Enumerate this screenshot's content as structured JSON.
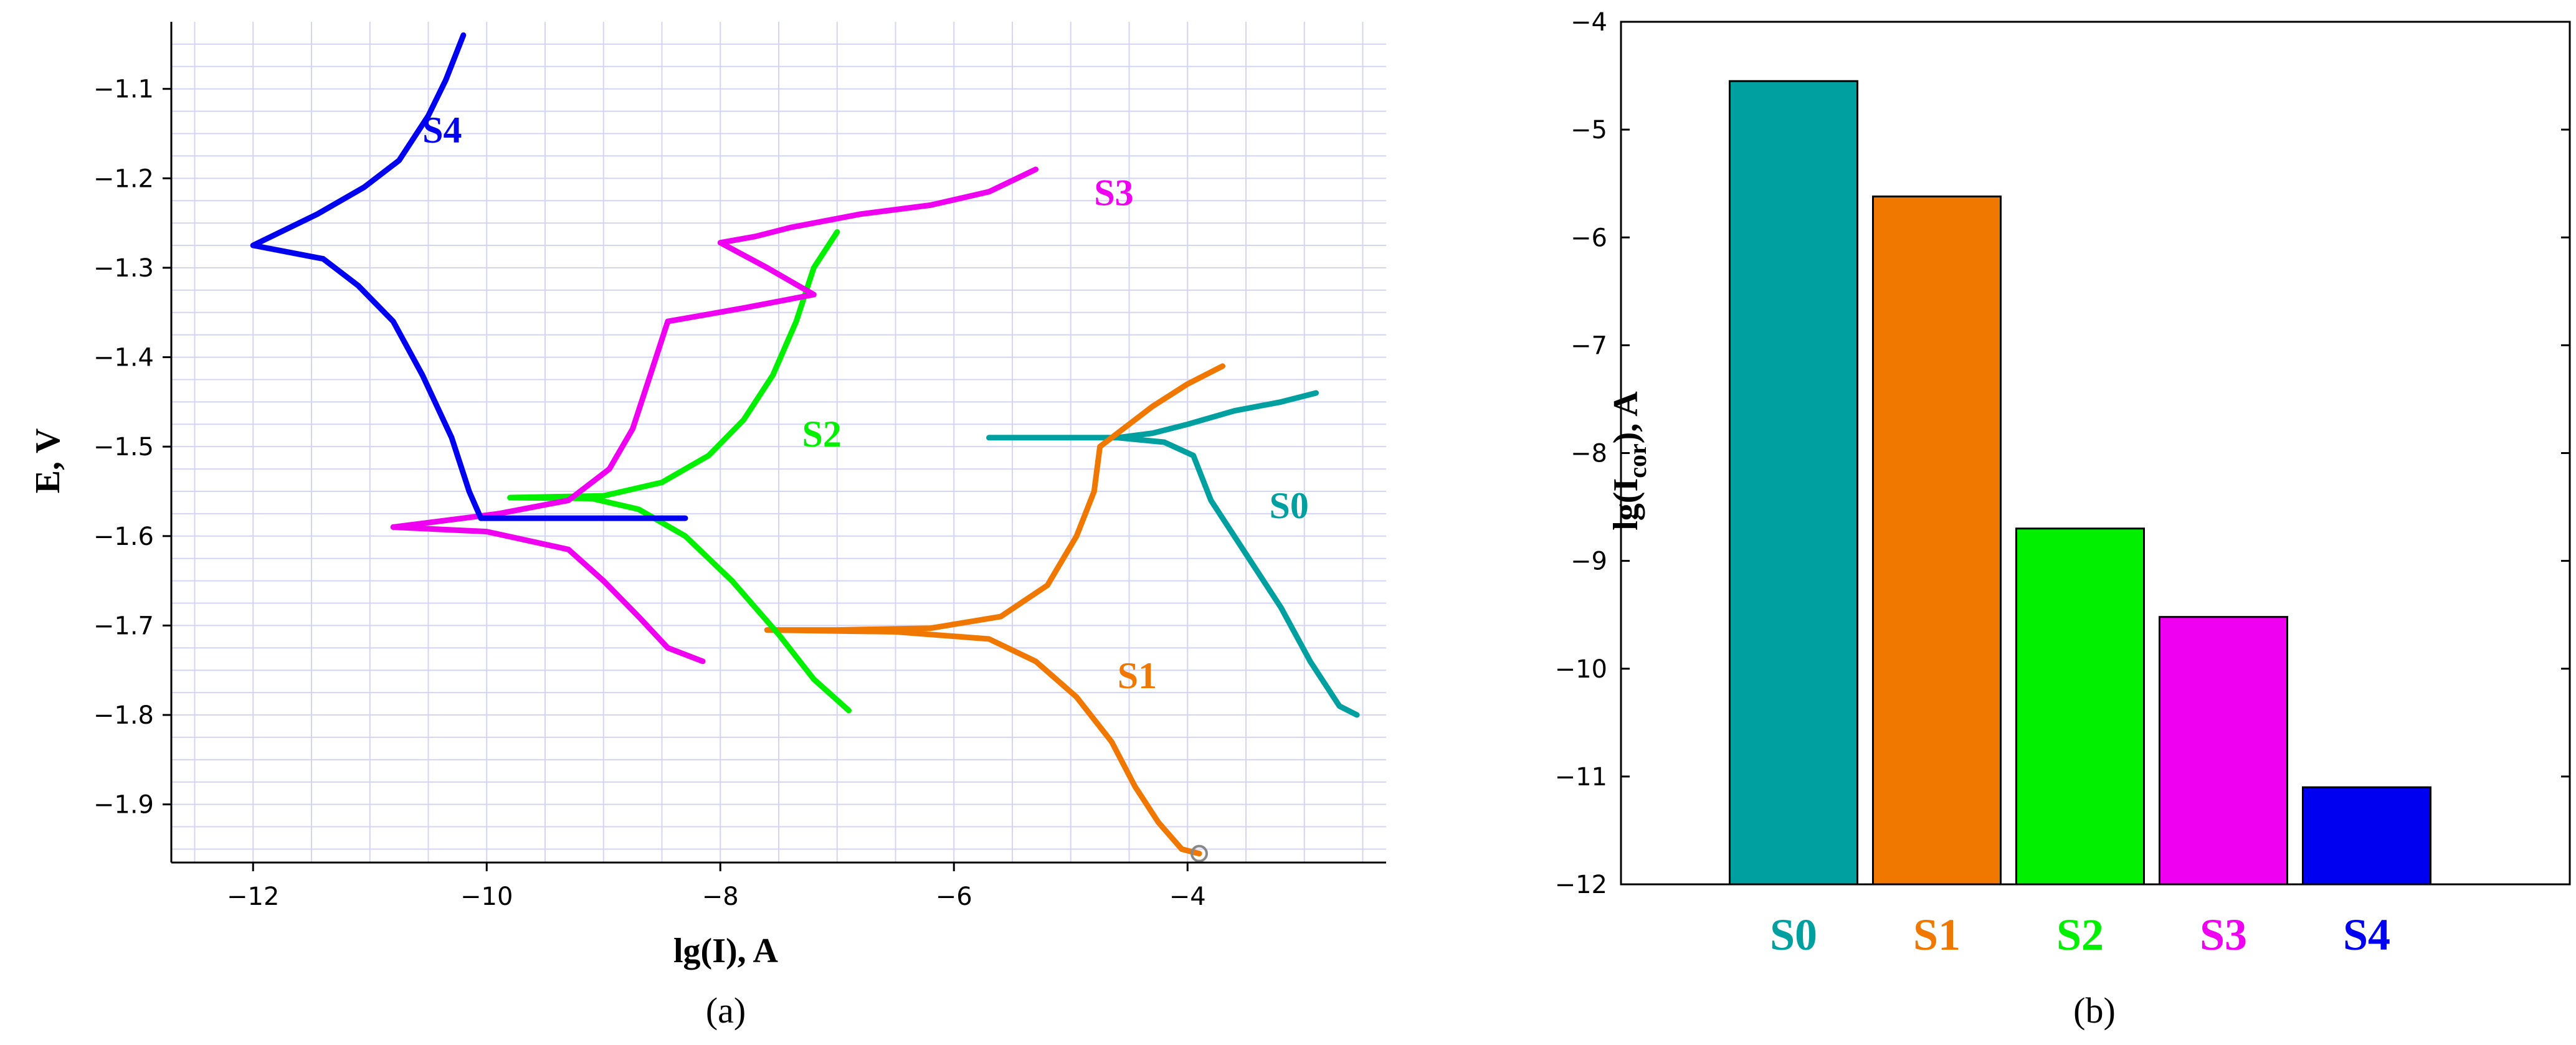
{
  "figure_labels": {
    "a": "(a)",
    "b": "(b)"
  },
  "chart_data": [
    {
      "type": "line",
      "title": "",
      "xlabel": "lg(I), A",
      "ylabel": "E, V",
      "xlim": [
        -12.7,
        -2.3
      ],
      "ylim": [
        -1.965,
        -1.025
      ],
      "xticks": [
        -12,
        -10,
        -8,
        -6,
        -4
      ],
      "yticks": [
        -1.1,
        -1.2,
        -1.3,
        -1.4,
        -1.5,
        -1.6,
        -1.7,
        -1.8,
        -1.9
      ],
      "xtick_labels": [
        "−12",
        "−10",
        "−8",
        "−6",
        "−4"
      ],
      "ytick_labels": [
        "−1.1",
        "−1.2",
        "−1.3",
        "−1.4",
        "−1.5",
        "−1.6",
        "−1.7",
        "−1.8",
        "−1.9"
      ],
      "grid": true,
      "series": [
        {
          "name": "S0",
          "color": "#00A0A0",
          "label_at": [
            -3.3,
            -1.58
          ],
          "points": [
            [
              -5.7,
              -1.49
            ],
            [
              -5.0,
              -1.49
            ],
            [
              -4.6,
              -1.49
            ],
            [
              -4.3,
              -1.485
            ],
            [
              -4.0,
              -1.475
            ],
            [
              -3.6,
              -1.46
            ],
            [
              -3.2,
              -1.45
            ],
            [
              -2.9,
              -1.44
            ]
          ],
          "points2": [
            [
              -4.6,
              -1.49
            ],
            [
              -4.2,
              -1.495
            ],
            [
              -3.95,
              -1.51
            ],
            [
              -3.8,
              -1.56
            ],
            [
              -3.5,
              -1.62
            ],
            [
              -3.2,
              -1.68
            ],
            [
              -2.95,
              -1.74
            ],
            [
              -2.7,
              -1.79
            ],
            [
              -2.55,
              -1.8
            ]
          ]
        },
        {
          "name": "S1",
          "color": "#F07800",
          "label_at": [
            -4.6,
            -1.77
          ],
          "points": [
            [
              -3.7,
              -1.41
            ],
            [
              -4.0,
              -1.43
            ],
            [
              -4.3,
              -1.455
            ],
            [
              -4.65,
              -1.49
            ],
            [
              -4.75,
              -1.5
            ],
            [
              -4.8,
              -1.55
            ],
            [
              -4.95,
              -1.6
            ],
            [
              -5.2,
              -1.655
            ],
            [
              -5.6,
              -1.69
            ],
            [
              -6.2,
              -1.703
            ],
            [
              -7.0,
              -1.705
            ],
            [
              -7.6,
              -1.705
            ]
          ],
          "points2": [
            [
              -7.6,
              -1.705
            ],
            [
              -6.5,
              -1.707
            ],
            [
              -5.7,
              -1.715
            ],
            [
              -5.3,
              -1.74
            ],
            [
              -4.95,
              -1.78
            ],
            [
              -4.65,
              -1.83
            ],
            [
              -4.45,
              -1.88
            ],
            [
              -4.25,
              -1.92
            ],
            [
              -4.05,
              -1.95
            ],
            [
              -3.9,
              -1.955
            ]
          ]
        },
        {
          "name": "S2",
          "color": "#00F000",
          "label_at": [
            -7.3,
            -1.5
          ],
          "points": [
            [
              -7.0,
              -1.26
            ],
            [
              -7.2,
              -1.3
            ],
            [
              -7.35,
              -1.36
            ],
            [
              -7.55,
              -1.42
            ],
            [
              -7.8,
              -1.47
            ],
            [
              -8.1,
              -1.51
            ],
            [
              -8.5,
              -1.54
            ],
            [
              -9.0,
              -1.555
            ],
            [
              -9.8,
              -1.557
            ]
          ],
          "points2": [
            [
              -9.8,
              -1.557
            ],
            [
              -9.1,
              -1.558
            ],
            [
              -8.7,
              -1.57
            ],
            [
              -8.3,
              -1.6
            ],
            [
              -7.9,
              -1.65
            ],
            [
              -7.5,
              -1.71
            ],
            [
              -7.2,
              -1.76
            ],
            [
              -6.9,
              -1.795
            ]
          ]
        },
        {
          "name": "S3",
          "color": "#F000F0",
          "label_at": [
            -4.8,
            -1.23
          ],
          "points": [
            [
              -5.3,
              -1.19
            ],
            [
              -5.7,
              -1.215
            ],
            [
              -6.2,
              -1.23
            ],
            [
              -6.8,
              -1.24
            ],
            [
              -7.4,
              -1.255
            ],
            [
              -7.7,
              -1.265
            ],
            [
              -8.0,
              -1.272
            ],
            [
              -7.6,
              -1.3
            ],
            [
              -7.2,
              -1.33
            ],
            [
              -7.8,
              -1.345
            ],
            [
              -8.45,
              -1.36
            ],
            [
              -8.6,
              -1.42
            ],
            [
              -8.75,
              -1.48
            ],
            [
              -8.95,
              -1.525
            ],
            [
              -9.3,
              -1.56
            ],
            [
              -9.9,
              -1.575
            ],
            [
              -10.8,
              -1.59
            ]
          ],
          "points2": [
            [
              -10.8,
              -1.59
            ],
            [
              -10.0,
              -1.595
            ],
            [
              -9.3,
              -1.615
            ],
            [
              -9.0,
              -1.65
            ],
            [
              -8.7,
              -1.69
            ],
            [
              -8.45,
              -1.725
            ],
            [
              -8.15,
              -1.74
            ]
          ]
        },
        {
          "name": "S4",
          "color": "#0000F0",
          "label_at": [
            -10.55,
            -1.16
          ],
          "points": [
            [
              -10.2,
              -1.04
            ],
            [
              -10.35,
              -1.09
            ],
            [
              -10.5,
              -1.13
            ],
            [
              -10.75,
              -1.18
            ],
            [
              -11.05,
              -1.21
            ],
            [
              -11.45,
              -1.24
            ],
            [
              -12.0,
              -1.275
            ],
            [
              -11.4,
              -1.29
            ],
            [
              -11.1,
              -1.32
            ],
            [
              -10.8,
              -1.36
            ],
            [
              -10.55,
              -1.42
            ],
            [
              -10.3,
              -1.49
            ],
            [
              -10.15,
              -1.55
            ],
            [
              -10.05,
              -1.58
            ]
          ],
          "points2": [
            [
              -10.05,
              -1.58
            ],
            [
              -9.5,
              -1.58
            ],
            [
              -8.9,
              -1.58
            ],
            [
              -8.3,
              -1.58
            ]
          ]
        }
      ],
      "marker_point": [
        -3.9,
        -1.955
      ]
    },
    {
      "type": "bar",
      "title": "",
      "xlabel": "",
      "ylabel_main": "lg(I",
      "ylabel_sub": "cor",
      "ylabel_end": "), A",
      "ylim": [
        -12,
        -4
      ],
      "yticks": [
        -4,
        -5,
        -6,
        -7,
        -8,
        -9,
        -10,
        -11,
        -12
      ],
      "ytick_labels": [
        "−4",
        "−5",
        "−6",
        "−7",
        "−8",
        "−9",
        "−10",
        "−11",
        "−12"
      ],
      "categories": [
        "S0",
        "S1",
        "S2",
        "S3",
        "S4"
      ],
      "values": [
        -4.55,
        -5.62,
        -8.7,
        -9.52,
        -11.1
      ],
      "colors": [
        "#00A0A0",
        "#F07800",
        "#00F000",
        "#F000F0",
        "#0000F0"
      ]
    }
  ]
}
